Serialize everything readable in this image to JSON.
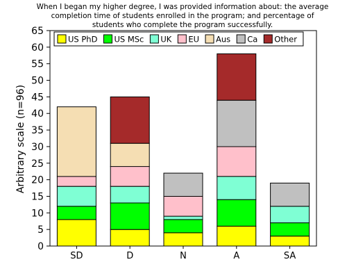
{
  "chart_data": {
    "type": "bar",
    "stacked": true,
    "title_lines": [
      "When I began my higher degree, I was provided information about: the average",
      "completion time of students enrolled in the program; and percentage of",
      "students who complete the program successfully."
    ],
    "xlabel": "",
    "ylabel": "Arbitrary scale (n=96)",
    "ylim": [
      0,
      65
    ],
    "yticks": [
      0,
      5,
      10,
      15,
      20,
      25,
      30,
      35,
      40,
      45,
      50,
      55,
      60,
      65
    ],
    "categories": [
      "SD",
      "D",
      "N",
      "A",
      "SA"
    ],
    "grid": false,
    "legend_position": "top",
    "series": [
      {
        "name": "US PhD",
        "color": "#ffff00",
        "values": [
          8,
          5,
          4,
          6,
          3
        ]
      },
      {
        "name": "US MSc",
        "color": "#00ff00",
        "values": [
          4,
          8,
          4,
          8,
          4
        ]
      },
      {
        "name": "UK",
        "color": "#7fffd4",
        "values": [
          6,
          5,
          1,
          7,
          5
        ]
      },
      {
        "name": "EU",
        "color": "#ffc0cb",
        "values": [
          3,
          6,
          6,
          9,
          0
        ]
      },
      {
        "name": "Aus",
        "color": "#f5deb3",
        "values": [
          21,
          7,
          0,
          0,
          0
        ]
      },
      {
        "name": "Ca",
        "color": "#c0c0c0",
        "values": [
          0,
          0,
          7,
          14,
          7
        ]
      },
      {
        "name": "Other",
        "color": "#a52a2a",
        "values": [
          0,
          14,
          0,
          14,
          0
        ]
      }
    ]
  }
}
